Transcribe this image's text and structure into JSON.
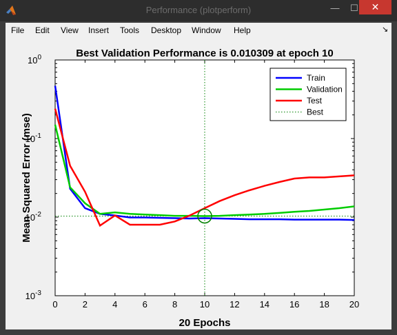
{
  "window": {
    "title": "Performance (plotperform)",
    "min_glyph": "—",
    "max_glyph": "☐",
    "close_glyph": "✕",
    "icon": "matlab-logo-icon"
  },
  "menu": {
    "items": [
      "File",
      "Edit",
      "View",
      "Insert",
      "Tools",
      "Desktop",
      "Window",
      "Help"
    ],
    "dock_glyph": "↘"
  },
  "chart_data": {
    "type": "line",
    "title": "Best Validation Performance is 0.010309 at epoch 10",
    "xlabel": "20 Epochs",
    "ylabel": "Mean Squared Error  (mse)",
    "xlim": [
      0,
      20
    ],
    "ylim": [
      0.001,
      1
    ],
    "yscale": "log",
    "xticks": [
      "0",
      "2",
      "4",
      "6",
      "8",
      "10",
      "12",
      "14",
      "16",
      "18",
      "20"
    ],
    "yticks": [
      {
        "base": "10",
        "exp": "0",
        "value": 1
      },
      {
        "base": "10",
        "exp": "-1",
        "value": 0.1
      },
      {
        "base": "10",
        "exp": "-2",
        "value": 0.01
      },
      {
        "base": "10",
        "exp": "-3",
        "value": 0.001
      }
    ],
    "grid": false,
    "legend_position": "top-right",
    "x": [
      0,
      1,
      2,
      3,
      4,
      5,
      6,
      7,
      8,
      9,
      10,
      11,
      12,
      13,
      14,
      15,
      16,
      17,
      18,
      19,
      20
    ],
    "series": [
      {
        "name": "Train",
        "color": "#0000ff",
        "values": [
          0.47,
          0.023,
          0.013,
          0.011,
          0.0105,
          0.0099,
          0.0099,
          0.0098,
          0.0097,
          0.0096,
          0.0097,
          0.0096,
          0.0095,
          0.0094,
          0.0094,
          0.0094,
          0.0093,
          0.0093,
          0.0093,
          0.0093,
          0.0092
        ]
      },
      {
        "name": "Validation",
        "color": "#00cc00",
        "values": [
          0.15,
          0.024,
          0.015,
          0.011,
          0.0115,
          0.011,
          0.0108,
          0.0106,
          0.0104,
          0.0104,
          0.0103,
          0.0104,
          0.0106,
          0.0108,
          0.011,
          0.0113,
          0.0117,
          0.012,
          0.0125,
          0.013,
          0.0137
        ]
      },
      {
        "name": "Test",
        "color": "#ff0000",
        "values": [
          0.24,
          0.045,
          0.021,
          0.0078,
          0.0105,
          0.008,
          0.008,
          0.008,
          0.0088,
          0.0105,
          0.013,
          0.016,
          0.019,
          0.022,
          0.025,
          0.028,
          0.031,
          0.032,
          0.032,
          0.033,
          0.034
        ]
      }
    ],
    "best": {
      "name": "Best",
      "epoch": 10,
      "value": 0.010309,
      "color": "#008000"
    }
  }
}
